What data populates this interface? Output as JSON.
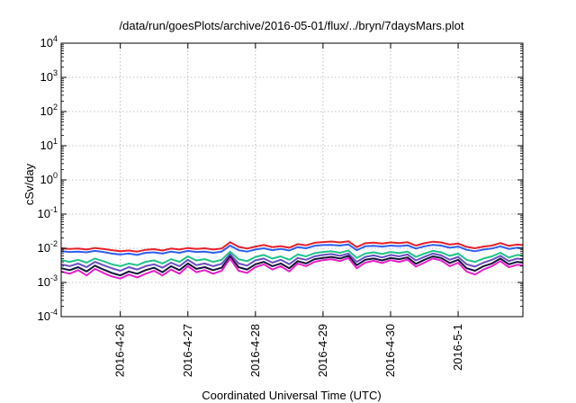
{
  "chart_data": {
    "type": "line",
    "title": "/data/run/goesPlots/archive/2016-05-01/flux/../bryn/7daysMars.plot",
    "xlabel": "Coordinated Universal Time (UTC)",
    "ylabel": "cSv/day",
    "yscale": "log",
    "ylim": [
      0.0001,
      10000
    ],
    "xlim": [
      "2016-04-25T03:00",
      "2016-05-01T23:00"
    ],
    "grid": true,
    "x_ticks": [
      {
        "value": "2016-04-26T00:00",
        "label": "2016-4-26"
      },
      {
        "value": "2016-04-27T00:00",
        "label": "2016-4-27"
      },
      {
        "value": "2016-04-28T00:00",
        "label": "2016-4-28"
      },
      {
        "value": "2016-04-29T00:00",
        "label": "2016-4-29"
      },
      {
        "value": "2016-04-30T00:00",
        "label": "2016-4-30"
      },
      {
        "value": "2016-05-01T00:00",
        "label": "2016-5-1"
      }
    ],
    "y_ticks": [
      {
        "value": 0.0001,
        "base": "10",
        "exp": "-4"
      },
      {
        "value": 0.001,
        "base": "10",
        "exp": "-3"
      },
      {
        "value": 0.01,
        "base": "10",
        "exp": "-2"
      },
      {
        "value": 0.1,
        "base": "10",
        "exp": "-1"
      },
      {
        "value": 1,
        "base": "10",
        "exp": "0"
      },
      {
        "value": 10,
        "base": "10",
        "exp": "1"
      },
      {
        "value": 100,
        "base": "10",
        "exp": "2"
      },
      {
        "value": 1000,
        "base": "10",
        "exp": "3"
      },
      {
        "value": 10000,
        "base": "10",
        "exp": "4"
      }
    ],
    "x": [
      "2016-04-25T03:00",
      "2016-04-25T06:00",
      "2016-04-25T09:00",
      "2016-04-25T12:00",
      "2016-04-25T15:00",
      "2016-04-25T18:00",
      "2016-04-25T21:00",
      "2016-04-26T00:00",
      "2016-04-26T03:00",
      "2016-04-26T06:00",
      "2016-04-26T09:00",
      "2016-04-26T12:00",
      "2016-04-26T15:00",
      "2016-04-26T18:00",
      "2016-04-26T21:00",
      "2016-04-27T00:00",
      "2016-04-27T03:00",
      "2016-04-27T06:00",
      "2016-04-27T09:00",
      "2016-04-27T12:00",
      "2016-04-27T15:00",
      "2016-04-27T18:00",
      "2016-04-27T21:00",
      "2016-04-28T00:00",
      "2016-04-28T03:00",
      "2016-04-28T06:00",
      "2016-04-28T09:00",
      "2016-04-28T12:00",
      "2016-04-28T15:00",
      "2016-04-28T18:00",
      "2016-04-28T21:00",
      "2016-04-29T00:00",
      "2016-04-29T03:00",
      "2016-04-29T06:00",
      "2016-04-29T09:00",
      "2016-04-29T12:00",
      "2016-04-29T15:00",
      "2016-04-29T18:00",
      "2016-04-29T21:00",
      "2016-04-30T00:00",
      "2016-04-30T03:00",
      "2016-04-30T06:00",
      "2016-04-30T09:00",
      "2016-04-30T12:00",
      "2016-04-30T15:00",
      "2016-04-30T18:00",
      "2016-04-30T21:00",
      "2016-05-01T00:00",
      "2016-05-01T03:00",
      "2016-05-01T06:00",
      "2016-05-01T09:00",
      "2016-05-01T12:00",
      "2016-05-01T15:00",
      "2016-05-01T18:00",
      "2016-05-01T21:00",
      "2016-05-01T23:00"
    ],
    "series": [
      {
        "color": "#e8202a",
        "values": [
          0.01,
          0.0095,
          0.0098,
          0.0092,
          0.0102,
          0.0096,
          0.0088,
          0.0082,
          0.0086,
          0.008,
          0.009,
          0.0094,
          0.0086,
          0.0098,
          0.0092,
          0.0102,
          0.0096,
          0.01,
          0.0092,
          0.0098,
          0.015,
          0.011,
          0.0098,
          0.0112,
          0.0124,
          0.0108,
          0.0116,
          0.0104,
          0.0132,
          0.0122,
          0.0145,
          0.0152,
          0.0158,
          0.0148,
          0.016,
          0.0108,
          0.014,
          0.0146,
          0.0138,
          0.0148,
          0.0142,
          0.015,
          0.012,
          0.014,
          0.0156,
          0.0148,
          0.0128,
          0.0138,
          0.011,
          0.01,
          0.0112,
          0.012,
          0.0142,
          0.0118,
          0.0128,
          0.0124
        ]
      },
      {
        "color": "#2e5ff0",
        "values": [
          0.0082,
          0.0078,
          0.008,
          0.0076,
          0.0084,
          0.0078,
          0.007,
          0.0066,
          0.007,
          0.0064,
          0.0074,
          0.0076,
          0.007,
          0.008,
          0.0074,
          0.0084,
          0.0078,
          0.008,
          0.0074,
          0.008,
          0.012,
          0.0088,
          0.008,
          0.0092,
          0.01,
          0.0088,
          0.0096,
          0.0086,
          0.0108,
          0.01,
          0.0118,
          0.0124,
          0.0126,
          0.012,
          0.013,
          0.0088,
          0.0114,
          0.0118,
          0.0112,
          0.012,
          0.0116,
          0.0122,
          0.0098,
          0.0114,
          0.0126,
          0.012,
          0.0104,
          0.0112,
          0.009,
          0.0082,
          0.0092,
          0.0098,
          0.0114,
          0.0096,
          0.0104,
          0.01
        ]
      },
      {
        "color": "#1ec488",
        "values": [
          0.0045,
          0.004,
          0.0046,
          0.0038,
          0.005,
          0.0042,
          0.0034,
          0.003,
          0.0036,
          0.0032,
          0.004,
          0.0044,
          0.0036,
          0.0048,
          0.004,
          0.0058,
          0.0044,
          0.0048,
          0.004,
          0.0046,
          0.008,
          0.0048,
          0.0042,
          0.0056,
          0.0064,
          0.005,
          0.0058,
          0.0046,
          0.0066,
          0.0058,
          0.0072,
          0.0078,
          0.0082,
          0.0074,
          0.0086,
          0.0052,
          0.007,
          0.0076,
          0.0068,
          0.0078,
          0.0072,
          0.008,
          0.0056,
          0.007,
          0.0084,
          0.0076,
          0.006,
          0.007,
          0.0046,
          0.004,
          0.005,
          0.0058,
          0.0074,
          0.0054,
          0.0064,
          0.006
        ]
      },
      {
        "color": "#6a4fc0",
        "values": [
          0.0034,
          0.003,
          0.0036,
          0.0028,
          0.004,
          0.0032,
          0.0026,
          0.0022,
          0.0028,
          0.0024,
          0.003,
          0.0034,
          0.0027,
          0.0038,
          0.003,
          0.0046,
          0.0032,
          0.0036,
          0.003,
          0.0035,
          0.0068,
          0.0036,
          0.0031,
          0.0044,
          0.005,
          0.0038,
          0.0046,
          0.0034,
          0.0052,
          0.0046,
          0.0058,
          0.0064,
          0.0068,
          0.006,
          0.007,
          0.004,
          0.0056,
          0.0062,
          0.0054,
          0.0064,
          0.0058,
          0.0066,
          0.0044,
          0.0056,
          0.007,
          0.0062,
          0.0046,
          0.0056,
          0.0034,
          0.0029,
          0.0038,
          0.0046,
          0.006,
          0.0042,
          0.005,
          0.0047
        ]
      },
      {
        "color": "#14143a",
        "values": [
          0.0026,
          0.0023,
          0.0028,
          0.0021,
          0.0031,
          0.0024,
          0.0019,
          0.0016,
          0.0021,
          0.0018,
          0.0023,
          0.0027,
          0.002,
          0.003,
          0.0023,
          0.0036,
          0.0025,
          0.0028,
          0.0023,
          0.0027,
          0.0058,
          0.0028,
          0.0024,
          0.0034,
          0.004,
          0.003,
          0.0036,
          0.0026,
          0.0042,
          0.0036,
          0.0048,
          0.0052,
          0.0056,
          0.005,
          0.006,
          0.0032,
          0.0046,
          0.005,
          0.0044,
          0.0052,
          0.0048,
          0.0054,
          0.0035,
          0.0046,
          0.0058,
          0.0052,
          0.0037,
          0.0046,
          0.0026,
          0.0022,
          0.003,
          0.0036,
          0.005,
          0.0034,
          0.004,
          0.0038
        ]
      },
      {
        "color": "#e81ec8",
        "values": [
          0.0021,
          0.0018,
          0.0023,
          0.0016,
          0.0025,
          0.0019,
          0.0015,
          0.0013,
          0.0017,
          0.0014,
          0.0018,
          0.0022,
          0.0016,
          0.0024,
          0.0018,
          0.003,
          0.002,
          0.0023,
          0.0018,
          0.0022,
          0.005,
          0.0022,
          0.0019,
          0.0028,
          0.0034,
          0.0024,
          0.003,
          0.0021,
          0.0036,
          0.003,
          0.004,
          0.0045,
          0.0048,
          0.0042,
          0.0052,
          0.0026,
          0.0038,
          0.0043,
          0.0037,
          0.0045,
          0.004,
          0.0047,
          0.0029,
          0.0038,
          0.005,
          0.0044,
          0.003,
          0.0038,
          0.0021,
          0.0017,
          0.0024,
          0.003,
          0.0042,
          0.0028,
          0.0033,
          0.0031
        ]
      }
    ]
  }
}
